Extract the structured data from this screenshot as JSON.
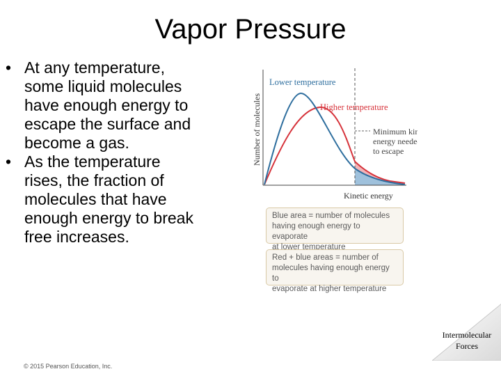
{
  "slide": {
    "title": "Vapor Pressure",
    "bullets": [
      {
        "marker": "•",
        "text": "At any temperature,\nsome liquid molecules\nhave enough energy to\nescape the surface and\nbecome a gas."
      },
      {
        "marker": "•",
        "text": "As the temperature\nrises, the fraction of\nmolecules that have\nenough energy to break\nfree increases."
      }
    ],
    "footer": {
      "badge": "Intermolecular\nForces",
      "copyright": "© 2015 Pearson Education, Inc."
    }
  },
  "figure": {
    "ylabel": "Number of molecules",
    "xlabel": "Kinetic energy",
    "curves": {
      "lower": {
        "label": "Lower temperature",
        "color": "#2e6e9e"
      },
      "higher": {
        "label": "Higher temperature",
        "color": "#d6323a"
      }
    },
    "threshold_label": "Minimum kinetic\nenergy needed\nto escape",
    "key": {
      "blue": "Blue area = number of molecules\nhaving enough energy to evaporate\nat lower temperature",
      "red": "Red + blue areas = number of\nmolecules having enough energy to\nevaporate at higher temperature"
    }
  }
}
